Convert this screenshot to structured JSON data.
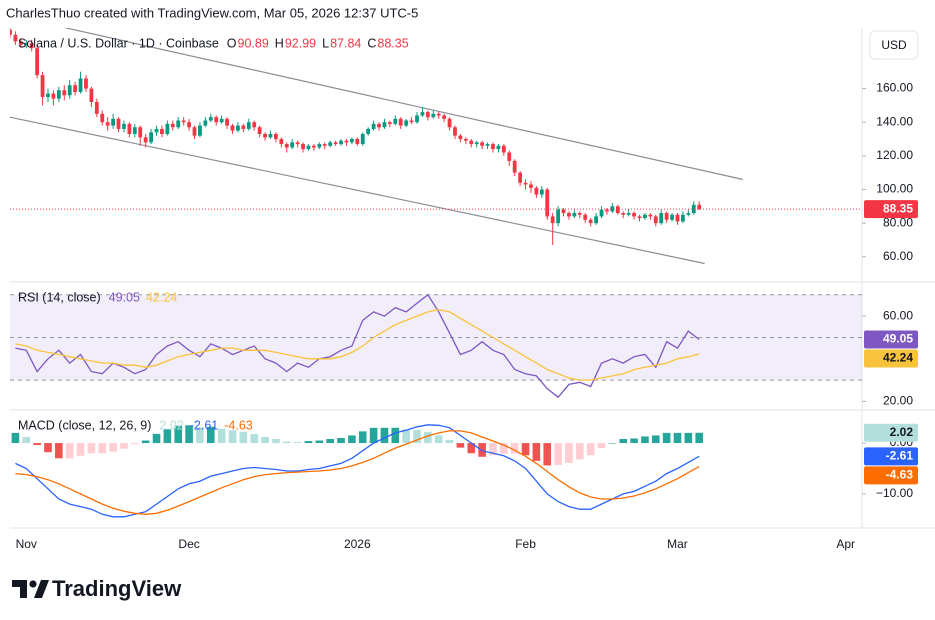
{
  "header": {
    "text": "CharlesThuo created with TradingView.com, Mar 05, 2026 12:37 UTC-5"
  },
  "footer": {
    "brand": "TradingView"
  },
  "chart_data": [
    {
      "type": "candlestick",
      "title": "Solana / U.S. Dollar · 1D · Coinbase",
      "currency": "USD",
      "ohlc_labels": [
        "O",
        "H",
        "L",
        "C"
      ],
      "up_color": "#089981",
      "down_color": "#f23645",
      "xlim": [
        -3,
        154
      ],
      "ylim": [
        45,
        196
      ],
      "yticks": [
        {
          "value": 60,
          "label": "60.00"
        },
        {
          "value": 80,
          "label": "80.00"
        },
        {
          "value": 100,
          "label": "100.00"
        },
        {
          "value": 120,
          "label": "120.00"
        },
        {
          "value": 140,
          "label": "140.00"
        },
        {
          "value": 160,
          "label": "160.00"
        }
      ],
      "trendline_color": "#8a8d96",
      "trendlines": [
        {
          "x": [
            6,
            132
          ],
          "y": [
            197,
            106
          ]
        },
        {
          "x": [
            -3,
            125
          ],
          "y": [
            143,
            56
          ]
        }
      ],
      "x": [
        -3,
        -2,
        -1,
        0,
        1,
        2,
        3,
        4,
        5,
        6,
        7,
        8,
        9,
        10,
        11,
        12,
        13,
        14,
        15,
        16,
        17,
        18,
        19,
        20,
        21,
        22,
        23,
        24,
        25,
        26,
        27,
        28,
        29,
        30,
        31,
        32,
        33,
        34,
        35,
        36,
        37,
        38,
        39,
        40,
        41,
        42,
        43,
        44,
        45,
        46,
        47,
        48,
        49,
        50,
        51,
        52,
        53,
        54,
        55,
        56,
        57,
        58,
        59,
        60,
        61,
        62,
        63,
        64,
        65,
        66,
        67,
        68,
        69,
        70,
        71,
        72,
        73,
        74,
        75,
        76,
        77,
        78,
        79,
        80,
        81,
        82,
        83,
        84,
        85,
        86,
        87,
        88,
        89,
        90,
        91,
        92,
        93,
        94,
        95,
        96,
        97,
        98,
        99,
        100,
        101,
        102,
        103,
        104,
        105,
        106,
        107,
        108,
        109,
        110,
        111,
        112,
        113,
        114,
        115,
        116,
        117,
        118,
        119,
        120,
        121,
        122,
        123,
        124
      ],
      "open": [
        195,
        192,
        188,
        186,
        187,
        184,
        168,
        155,
        157,
        154,
        159,
        156,
        162,
        158,
        166,
        160,
        152,
        145,
        140,
        138,
        142,
        136,
        139,
        133,
        137,
        131,
        128,
        134,
        136,
        133,
        139,
        137,
        141,
        140,
        137,
        132,
        138,
        141,
        143,
        140,
        142,
        138,
        135,
        138,
        136,
        140,
        137,
        133,
        131,
        133,
        130,
        127,
        125,
        128,
        127,
        124,
        126,
        125,
        127,
        126,
        128,
        127,
        129,
        128,
        130,
        127,
        133,
        136,
        139,
        137,
        140,
        139,
        142,
        138,
        141,
        140,
        144,
        146,
        143,
        145,
        144,
        142,
        137,
        132,
        130,
        129,
        127,
        128,
        126,
        127,
        124,
        126,
        122,
        117,
        110,
        104,
        103,
        101,
        97,
        100,
        84,
        80,
        88,
        86,
        84,
        86,
        85,
        82,
        80,
        84,
        88,
        87,
        90,
        86,
        85,
        86,
        84,
        83,
        85,
        84,
        80,
        86,
        82,
        85,
        81,
        85,
        86,
        90.89
      ],
      "high": [
        197,
        194,
        190,
        189,
        189,
        186,
        170,
        160,
        159,
        161,
        162,
        165,
        164,
        170,
        168,
        161,
        154,
        147,
        143,
        145,
        143,
        141,
        140,
        139,
        138,
        133,
        136,
        138,
        138,
        141,
        141,
        143,
        143,
        142,
        138,
        140,
        143,
        145,
        144,
        144,
        143,
        139,
        140,
        139,
        142,
        141,
        138,
        134,
        135,
        134,
        131,
        128,
        130,
        129,
        128,
        127,
        127,
        128,
        128,
        129,
        129,
        130,
        130,
        131,
        131,
        134,
        137,
        141,
        140,
        142,
        141,
        144,
        143,
        142,
        143,
        146,
        149,
        147,
        147,
        146,
        145,
        143,
        138,
        133,
        131,
        130,
        129,
        129,
        128,
        128,
        127,
        127,
        123,
        118,
        111,
        106,
        105,
        102,
        102,
        101,
        86,
        90,
        89,
        87,
        88,
        87,
        86,
        83,
        86,
        90,
        89,
        92,
        91,
        87,
        88,
        87,
        85,
        86,
        86,
        85,
        88,
        87,
        86,
        86,
        87,
        88,
        93,
        92.99
      ],
      "low": [
        190,
        186,
        184,
        184,
        182,
        166,
        150,
        152,
        150,
        152,
        153,
        154,
        156,
        157,
        158,
        149,
        143,
        138,
        135,
        136,
        134,
        134,
        131,
        131,
        126,
        125,
        127,
        132,
        131,
        132,
        135,
        136,
        138,
        135,
        130,
        131,
        137,
        140,
        138,
        139,
        136,
        133,
        134,
        134,
        135,
        135,
        131,
        129,
        130,
        128,
        125,
        122,
        124,
        125,
        122,
        123,
        123,
        124,
        124,
        125,
        126,
        126,
        126,
        127,
        126,
        126,
        132,
        135,
        135,
        136,
        137,
        138,
        136,
        137,
        139,
        139,
        143,
        141,
        142,
        142,
        140,
        135,
        130,
        128,
        127,
        125,
        125,
        124,
        124,
        122,
        122,
        120,
        114,
        108,
        102,
        100,
        98,
        95,
        95,
        82,
        67,
        78,
        84,
        82,
        83,
        83,
        80,
        78,
        79,
        83,
        85,
        86,
        85,
        83,
        84,
        82,
        81,
        82,
        82,
        78,
        79,
        80,
        81,
        79,
        80,
        84,
        85,
        87.84
      ],
      "close": [
        192,
        188,
        186,
        187,
        184,
        168,
        155,
        157,
        154,
        159,
        156,
        162,
        158,
        166,
        160,
        152,
        145,
        140,
        138,
        142,
        136,
        139,
        133,
        137,
        131,
        128,
        134,
        136,
        133,
        139,
        137,
        141,
        140,
        137,
        132,
        138,
        141,
        143,
        140,
        142,
        138,
        135,
        138,
        136,
        140,
        137,
        133,
        131,
        133,
        130,
        127,
        125,
        128,
        127,
        124,
        126,
        125,
        127,
        126,
        128,
        127,
        129,
        128,
        130,
        127,
        133,
        136,
        139,
        137,
        140,
        139,
        142,
        138,
        141,
        140,
        144,
        146,
        143,
        145,
        144,
        142,
        137,
        132,
        130,
        129,
        127,
        128,
        126,
        127,
        124,
        126,
        122,
        117,
        110,
        104,
        103,
        101,
        97,
        100,
        84,
        80,
        88,
        86,
        84,
        86,
        85,
        82,
        80,
        84,
        88,
        87,
        90,
        86,
        85,
        86,
        84,
        83,
        85,
        84,
        80,
        86,
        82,
        85,
        81,
        85,
        86,
        90.89,
        88.35
      ]
    },
    {
      "type": "line",
      "title": "RSI (14, close)",
      "xlim": [
        -3,
        154
      ],
      "ylim": [
        16,
        76
      ],
      "yticks": [
        {
          "value": 60,
          "label": "60.00"
        },
        {
          "value": 20,
          "label": "20.00"
        }
      ],
      "levels": [
        70,
        50,
        30
      ],
      "band_color": "rgba(126,87,194,0.1)",
      "x": [
        -2,
        0,
        2,
        4,
        6,
        8,
        10,
        12,
        14,
        16,
        18,
        20,
        22,
        24,
        26,
        28,
        30,
        32,
        34,
        36,
        38,
        40,
        42,
        44,
        46,
        48,
        50,
        52,
        54,
        56,
        58,
        60,
        62,
        64,
        66,
        68,
        70,
        72,
        74,
        76,
        78,
        80,
        82,
        84,
        86,
        88,
        90,
        92,
        94,
        96,
        98,
        100,
        102,
        104,
        106,
        108,
        110,
        112,
        114,
        116,
        118,
        120,
        122,
        124
      ],
      "series": [
        {
          "type": "line",
          "color": "#7e57c2",
          "values": [
            45,
            44,
            34,
            40,
            44,
            38,
            42,
            34,
            33,
            38,
            36,
            33,
            35,
            42,
            46,
            48,
            44,
            41,
            47,
            45,
            42,
            44,
            46,
            40,
            38,
            34,
            38,
            36,
            40,
            41,
            44,
            46,
            58,
            62,
            60,
            64,
            62,
            66,
            70,
            62,
            52,
            42,
            44,
            48,
            44,
            42,
            35,
            33,
            32,
            26,
            22,
            28,
            29,
            27,
            38,
            40,
            38,
            41,
            42,
            36,
            48,
            45,
            53,
            49.05
          ]
        },
        {
          "type": "line",
          "color": "#f9c23c",
          "values": [
            47,
            46,
            44,
            43,
            42,
            41,
            40,
            39,
            38,
            38,
            37,
            37,
            36,
            37,
            39,
            41,
            42,
            43,
            44,
            45,
            45,
            44,
            44,
            44,
            43,
            42,
            41,
            40,
            40,
            40,
            41,
            43,
            46,
            50,
            53,
            56,
            58,
            60,
            62,
            63,
            62,
            59,
            56,
            53,
            50,
            47,
            44,
            41,
            38,
            35,
            33,
            31,
            30,
            30,
            31,
            32,
            33,
            35,
            36,
            37,
            38,
            40,
            41,
            42.24
          ]
        }
      ]
    },
    {
      "type": "line",
      "title": "MACD (close, 12, 26, 9)",
      "xlim": [
        -3,
        154
      ],
      "ylim": [
        -16.7,
        6.5
      ],
      "yticks": [
        {
          "value": 0,
          "label": "0.00"
        },
        {
          "value": -10,
          "label": "−10.00"
        }
      ],
      "xticks": [
        {
          "value": 0,
          "label": "Nov"
        },
        {
          "value": 30,
          "label": "Dec"
        },
        {
          "value": 61,
          "label": "2026"
        },
        {
          "value": 92,
          "label": "Feb"
        },
        {
          "value": 120,
          "label": "Mar"
        },
        {
          "value": 151,
          "label": "Apr"
        }
      ],
      "x": [
        -2,
        0,
        2,
        4,
        6,
        8,
        10,
        12,
        14,
        16,
        18,
        20,
        22,
        24,
        26,
        28,
        30,
        32,
        34,
        36,
        38,
        40,
        42,
        44,
        46,
        48,
        50,
        52,
        54,
        56,
        58,
        60,
        62,
        64,
        66,
        68,
        70,
        72,
        74,
        76,
        78,
        80,
        82,
        84,
        86,
        88,
        90,
        92,
        94,
        96,
        98,
        100,
        102,
        104,
        106,
        108,
        110,
        112,
        114,
        116,
        118,
        120,
        122,
        124
      ],
      "series": [
        {
          "type": "bar",
          "color": "#b2dfdb",
          "colors": {
            "pos_up": "#26a69a",
            "pos_down": "#b2dfdb",
            "neg_down": "#ef5350",
            "neg_up": "#ffcdd2"
          },
          "values": [
            2,
            1.2,
            -0.4,
            -1.8,
            -3,
            -3,
            -2.5,
            -2,
            -2,
            -1.7,
            -1.1,
            -0.2,
            0.5,
            1.8,
            2.7,
            3.4,
            3.5,
            3.1,
            3.2,
            2.8,
            2.5,
            2.2,
            1.8,
            1.2,
            0.8,
            0.3,
            0.2,
            0.4,
            0.5,
            0.8,
            1,
            1.5,
            2.3,
            3,
            3,
            3,
            2.7,
            2.6,
            2.2,
            1.5,
            0.6,
            -0.9,
            -2,
            -2.7,
            -2.4,
            -2.1,
            -2.1,
            -2.4,
            -3.5,
            -4.4,
            -4.3,
            -3.9,
            -3.2,
            -2.4,
            -1,
            0,
            0.8,
            0.9,
            1.3,
            1.5,
            2,
            2,
            2,
            2.02
          ]
        },
        {
          "type": "line",
          "color": "#2962ff",
          "values": [
            -4,
            -5,
            -7,
            -9,
            -11,
            -12,
            -12.5,
            -13,
            -14,
            -14.5,
            -14.5,
            -14,
            -13.5,
            -12,
            -10.5,
            -9,
            -8,
            -7.5,
            -6.5,
            -6,
            -5.5,
            -5,
            -4.8,
            -5,
            -5.2,
            -5.5,
            -5.5,
            -5.2,
            -5,
            -4.5,
            -4,
            -3,
            -1.5,
            0,
            1,
            2,
            2.5,
            3.2,
            3.6,
            3.5,
            3,
            1.5,
            0,
            -1.5,
            -2,
            -2.5,
            -3.5,
            -5,
            -7.5,
            -10,
            -11.5,
            -12.5,
            -13,
            -13,
            -12,
            -11,
            -10,
            -9.5,
            -8.5,
            -7.5,
            -6,
            -5,
            -3.8,
            -2.61
          ]
        },
        {
          "type": "line",
          "color": "#ff6d00",
          "values": [
            -6,
            -6.2,
            -6.6,
            -7.2,
            -8,
            -9,
            -10,
            -11,
            -12,
            -12.8,
            -13.4,
            -13.8,
            -14,
            -13.8,
            -13.2,
            -12.4,
            -11.5,
            -10.6,
            -9.7,
            -8.8,
            -8,
            -7.2,
            -6.6,
            -6.2,
            -6,
            -5.8,
            -5.7,
            -5.6,
            -5.5,
            -5.3,
            -5,
            -4.5,
            -3.8,
            -3,
            -2,
            -1,
            -0.2,
            0.6,
            1.4,
            2,
            2.4,
            2.4,
            2,
            1.2,
            0.4,
            -0.4,
            -1.4,
            -2.6,
            -4,
            -5.6,
            -7.2,
            -8.6,
            -9.8,
            -10.6,
            -11,
            -11,
            -10.8,
            -10.4,
            -9.8,
            -9,
            -8,
            -7,
            -5.8,
            -4.63
          ]
        }
      ]
    }
  ]
}
